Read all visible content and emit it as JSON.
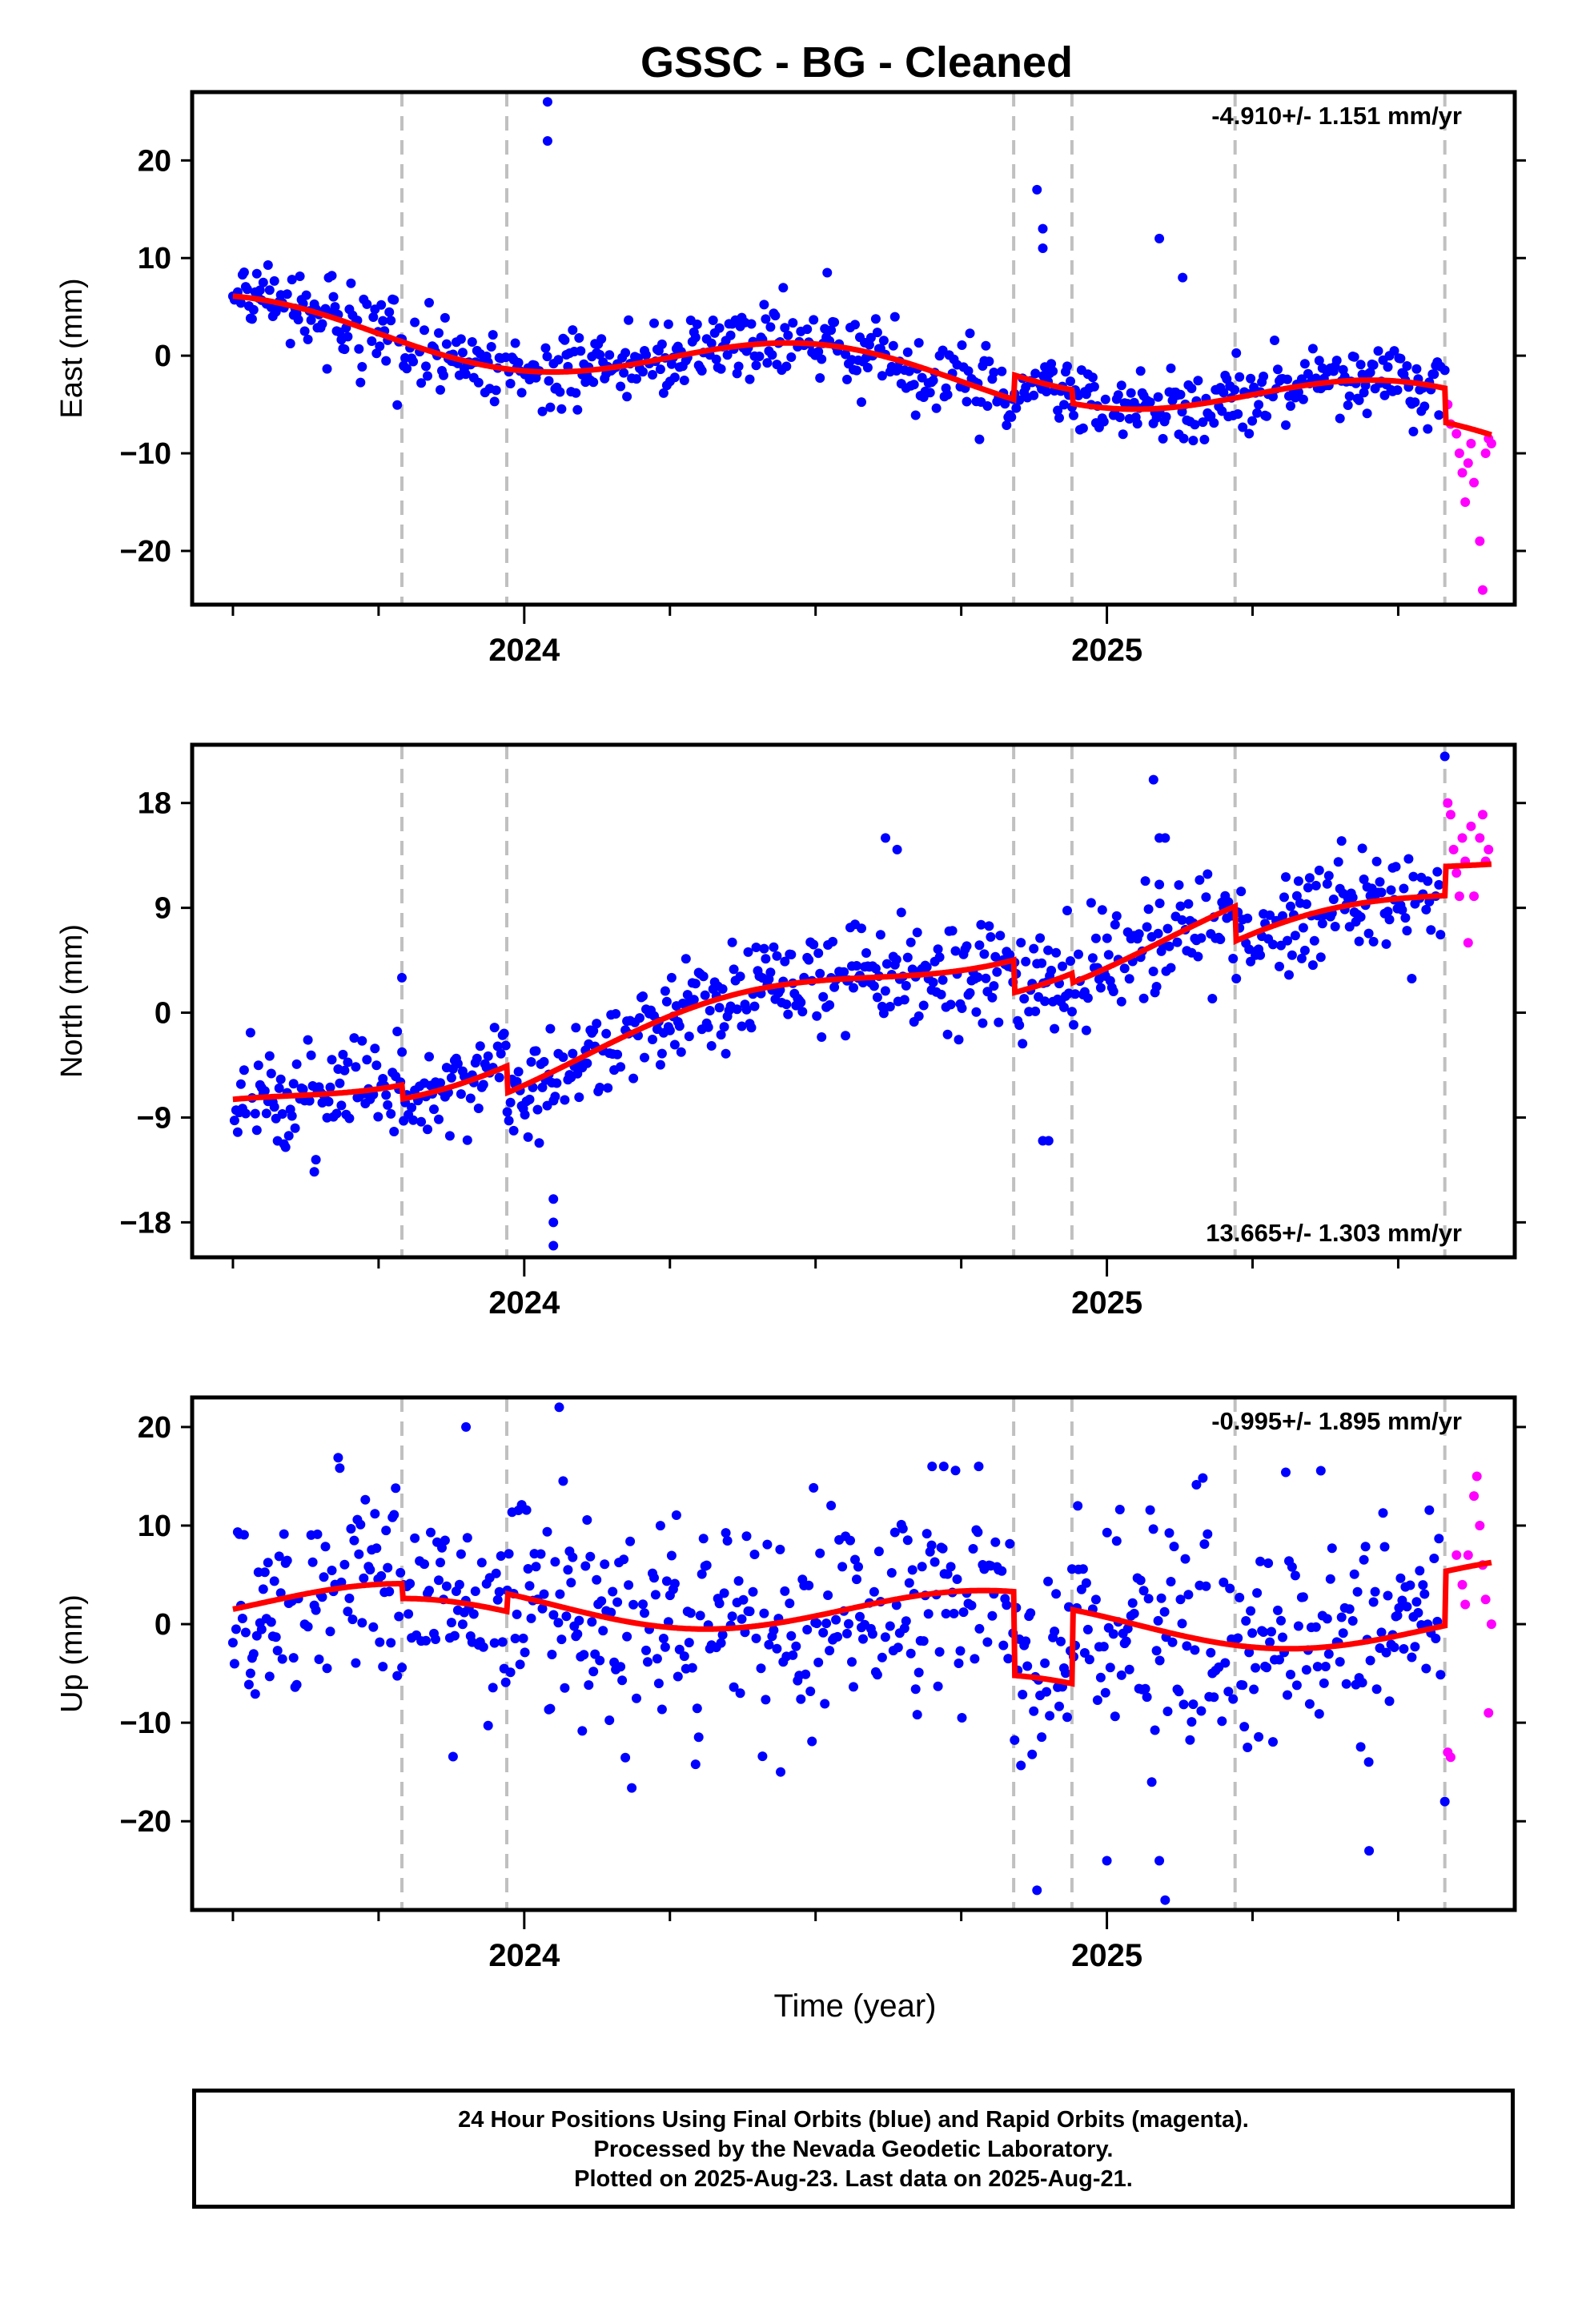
{
  "title": "GSSC  - BG - Cleaned",
  "xlabel": "Time (year)",
  "caption": {
    "line1": "24 Hour Positions Using Final Orbits (blue) and Rapid Orbits (magenta).",
    "line2": "Processed by the Nevada Geodetic Laboratory.",
    "line3": "Plotted on 2025-Aug-23. Last data on 2025-Aug-21."
  },
  "colors": {
    "final": "#0000ff",
    "rapid": "#ff00ff",
    "model": "#ff0000",
    "event_line": "#c0c0c0"
  },
  "chart_data": [
    {
      "type": "scatter",
      "component": "east",
      "ylabel": "East (mm)",
      "rate_label": "-4.910+/- 1.151 mm/yr",
      "xlim": [
        2023.43,
        2025.7
      ],
      "ylim": [
        -25.5,
        27
      ],
      "yticks": [
        -20,
        -10,
        0,
        10,
        20
      ],
      "xticks": [
        {
          "value": 2024,
          "label": "2024"
        },
        {
          "value": 2025,
          "label": "2025"
        }
      ],
      "event_lines": [
        2023.79,
        2023.97,
        2024.84,
        2024.94,
        2025.22,
        2025.58
      ],
      "trend": {
        "start": 2023.5,
        "end": 2025.575,
        "y0": 3.5,
        "rate": -4.91,
        "seasonal_amp": 2.6,
        "seasonal_phase": 0.25,
        "noise": 1.9,
        "offsets": [
          {
            "t": 2024.84,
            "dy": 2.5
          },
          {
            "t": 2024.94,
            "dy": -1.4
          },
          {
            "t": 2025.58,
            "dy": -3.5
          }
        ]
      },
      "outliers_final": [
        [
          2024.04,
          26
        ],
        [
          2024.04,
          22
        ],
        [
          2024.88,
          17
        ],
        [
          2024.89,
          13
        ],
        [
          2024.89,
          11
        ],
        [
          2025.09,
          12
        ],
        [
          2025.13,
          8
        ],
        [
          2024.52,
          8.5
        ],
        [
          2025.58,
          -1.5
        ]
      ],
      "rapid_points": [
        [
          2025.585,
          -5
        ],
        [
          2025.59,
          -7
        ],
        [
          2025.6,
          -8
        ],
        [
          2025.605,
          -10
        ],
        [
          2025.61,
          -12
        ],
        [
          2025.615,
          -15
        ],
        [
          2025.62,
          -11
        ],
        [
          2025.625,
          -9
        ],
        [
          2025.63,
          -13
        ],
        [
          2025.64,
          -19
        ],
        [
          2025.645,
          -24
        ],
        [
          2025.65,
          -10
        ],
        [
          2025.655,
          -8.5
        ],
        [
          2025.66,
          -9
        ]
      ]
    },
    {
      "type": "scatter",
      "component": "north",
      "ylabel": "North (mm)",
      "rate_label": "13.665+/- 1.303 mm/yr",
      "xlim": [
        2023.43,
        2025.7
      ],
      "ylim": [
        -21,
        23
      ],
      "yticks": [
        -18,
        -9,
        0,
        9,
        18
      ],
      "xticks": [
        {
          "value": 2024,
          "label": "2024"
        },
        {
          "value": 2025,
          "label": "2025"
        }
      ],
      "event_lines": [
        2023.79,
        2023.97,
        2024.84,
        2024.94,
        2025.22,
        2025.58
      ],
      "trend": {
        "start": 2023.5,
        "end": 2025.575,
        "y0": -8.5,
        "rate": 13.665,
        "seasonal_amp": 1.8,
        "seasonal_phase": 0.1,
        "noise": 2.2,
        "offsets": [
          {
            "t": 2023.79,
            "dy": -1.2
          },
          {
            "t": 2023.97,
            "dy": -2.3
          },
          {
            "t": 2024.84,
            "dy": -2.8
          },
          {
            "t": 2024.94,
            "dy": -0.8
          },
          {
            "t": 2025.22,
            "dy": -3.0
          },
          {
            "t": 2025.58,
            "dy": 2.5
          }
        ]
      },
      "outliers_final": [
        [
          2023.79,
          3
        ],
        [
          2024.05,
          -16
        ],
        [
          2024.05,
          -18
        ],
        [
          2024.05,
          -20
        ],
        [
          2024.62,
          15
        ],
        [
          2024.64,
          14
        ],
        [
          2024.89,
          -11
        ],
        [
          2024.9,
          -11
        ],
        [
          2025.08,
          20
        ],
        [
          2025.09,
          15
        ],
        [
          2025.1,
          15
        ],
        [
          2025.09,
          11
        ],
        [
          2025.58,
          22
        ]
      ],
      "rapid_points": [
        [
          2025.585,
          18
        ],
        [
          2025.59,
          17
        ],
        [
          2025.595,
          14
        ],
        [
          2025.6,
          12
        ],
        [
          2025.605,
          10
        ],
        [
          2025.61,
          15
        ],
        [
          2025.615,
          13
        ],
        [
          2025.62,
          6
        ],
        [
          2025.625,
          16
        ],
        [
          2025.63,
          10
        ],
        [
          2025.64,
          15
        ],
        [
          2025.645,
          17
        ],
        [
          2025.65,
          13
        ],
        [
          2025.655,
          14
        ]
      ]
    },
    {
      "type": "scatter",
      "component": "up",
      "ylabel": "Up (mm)",
      "rate_label": "-0.995+/- 1.895 mm/yr",
      "xlim": [
        2023.43,
        2025.7
      ],
      "ylim": [
        -29,
        23
      ],
      "yticks": [
        -20,
        -10,
        0,
        10,
        20
      ],
      "xticks": [
        {
          "value": 2024,
          "label": "2024"
        },
        {
          "value": 2025,
          "label": "2025"
        }
      ],
      "event_lines": [
        2023.79,
        2023.97,
        2024.84,
        2024.94,
        2025.22,
        2025.58
      ],
      "trend": {
        "start": 2023.5,
        "end": 2025.575,
        "y0": 2.2,
        "rate": -0.995,
        "seasonal_amp": 2.2,
        "seasonal_phase": 0.55,
        "noise": 5.5,
        "offsets": [
          {
            "t": 2023.79,
            "dy": -1.5
          },
          {
            "t": 2023.97,
            "dy": 1.8
          },
          {
            "t": 2024.84,
            "dy": -8.5
          },
          {
            "t": 2024.94,
            "dy": 7.5
          },
          {
            "t": 2025.58,
            "dy": 5.5
          }
        ]
      },
      "outliers_final": [
        [
          2023.9,
          20
        ],
        [
          2024.06,
          22
        ],
        [
          2024.88,
          -27
        ],
        [
          2024.95,
          12
        ],
        [
          2025.1,
          -28
        ],
        [
          2025.09,
          -24
        ],
        [
          2025.0,
          -24
        ],
        [
          2025.45,
          -23
        ],
        [
          2025.58,
          -18
        ],
        [
          2024.7,
          16
        ],
        [
          2024.72,
          16
        ],
        [
          2024.78,
          16
        ],
        [
          2024.44,
          -15
        ]
      ],
      "rapid_points": [
        [
          2025.585,
          -13
        ],
        [
          2025.59,
          -13.5
        ],
        [
          2025.6,
          7
        ],
        [
          2025.61,
          4
        ],
        [
          2025.615,
          2
        ],
        [
          2025.62,
          7
        ],
        [
          2025.63,
          13
        ],
        [
          2025.635,
          15
        ],
        [
          2025.64,
          10
        ],
        [
          2025.645,
          6
        ],
        [
          2025.65,
          2.5
        ],
        [
          2025.655,
          -9
        ],
        [
          2025.66,
          0
        ]
      ]
    }
  ]
}
